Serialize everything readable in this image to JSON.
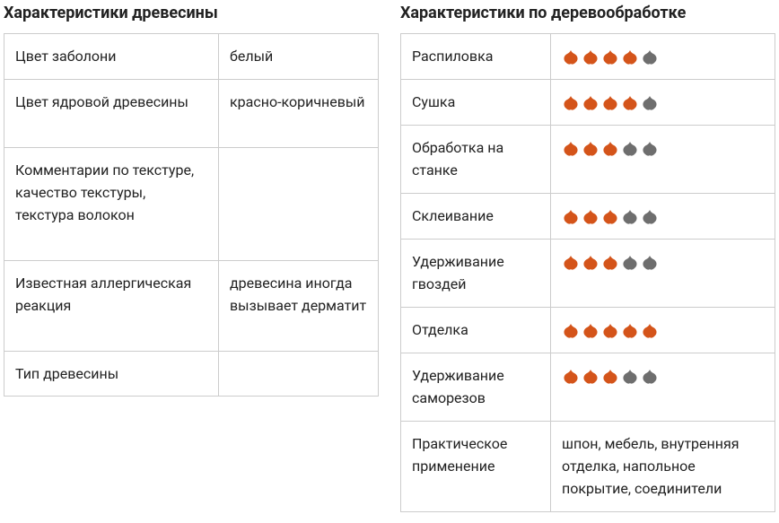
{
  "wood": {
    "title": "Характеристики древесины",
    "rows": [
      [
        "Цвет заболони",
        "белый"
      ],
      [
        "Цвет ядровой древесины",
        "красно-коричневый"
      ],
      [
        "Комментарии по текстуре, качество текстуры, текстура волокон",
        ""
      ],
      [
        "Известная аллергическая реакция",
        "древесина иногда вызывает дерматит"
      ],
      [
        "Тип древесины",
        ""
      ]
    ]
  },
  "work": {
    "title": "Характеристики по деревообработке",
    "max_rating": 5,
    "rows": [
      {
        "label": "Распиловка",
        "rating": 4
      },
      {
        "label": "Сушка",
        "rating": 4
      },
      {
        "label": "Обработка на станке",
        "rating": 3
      },
      {
        "label": "Склеивание",
        "rating": 3
      },
      {
        "label": "Удерживание гвоздей",
        "rating": 3
      },
      {
        "label": "Отделка",
        "rating": 5
      },
      {
        "label": "Удерживание саморезов",
        "rating": 3
      },
      {
        "label": "Практическое применение",
        "text": "шпон, мебель, внутренняя отделка, напольное покрытие, соединители"
      }
    ]
  }
}
